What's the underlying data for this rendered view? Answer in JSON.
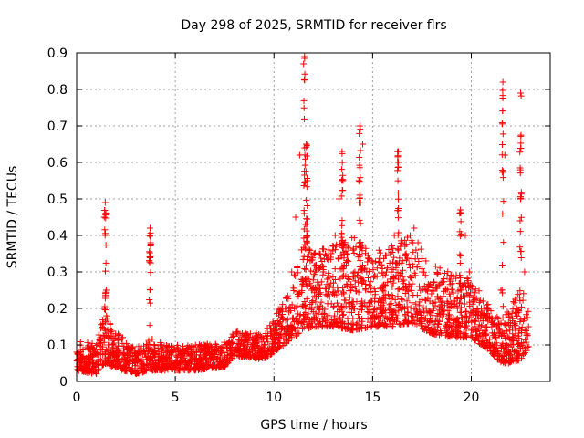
{
  "chart_data": {
    "type": "scatter",
    "title": "Day 298 of 2025, SRMTID for receiver flrs",
    "xlabel": "GPS time / hours",
    "ylabel": "SRMTID / TECUs",
    "xlim": [
      0,
      24
    ],
    "ylim": [
      0,
      0.9
    ],
    "xticks": [
      "0",
      "5",
      "10",
      "15",
      "20"
    ],
    "yticks": [
      "0",
      "0.1",
      "0.2",
      "0.3",
      "0.4",
      "0.5",
      "0.6",
      "0.7",
      "0.8",
      "0.9"
    ],
    "grid": true,
    "marker": "+",
    "color": "#ff0000",
    "series": [
      {
        "name": "SRMTID",
        "x": [
          0.0,
          0.2,
          0.4,
          0.6,
          0.8,
          1.0,
          1.2,
          1.4,
          1.5,
          1.6,
          1.8,
          2.0,
          2.3,
          2.6,
          3.0,
          3.3,
          3.6,
          3.75,
          3.9,
          4.2,
          4.5,
          5.0,
          5.5,
          6.0,
          6.5,
          7.0,
          7.5,
          8.0,
          8.5,
          9.0,
          9.5,
          10.0,
          10.3,
          10.6,
          10.9,
          11.1,
          11.3,
          11.5,
          11.7,
          11.9,
          12.1,
          12.3,
          12.5,
          12.7,
          12.9,
          13.1,
          13.3,
          13.5,
          13.7,
          13.9,
          14.1,
          14.3,
          14.5,
          14.7,
          14.9,
          15.1,
          15.3,
          15.5,
          15.7,
          15.9,
          16.1,
          16.3,
          16.5,
          16.7,
          16.9,
          17.1,
          17.3,
          17.5,
          17.7,
          17.9,
          18.1,
          18.3,
          18.5,
          18.7,
          18.9,
          19.1,
          19.3,
          19.5,
          19.7,
          19.9,
          20.1,
          20.3,
          20.5,
          20.7,
          20.9,
          21.1,
          21.3,
          21.5,
          21.7,
          21.9,
          22.1,
          22.3,
          22.5,
          22.7,
          22.9
        ],
        "y": [
          0.08,
          0.06,
          0.05,
          0.07,
          0.09,
          0.05,
          0.12,
          0.45,
          0.25,
          0.1,
          0.08,
          0.07,
          0.06,
          0.05,
          0.06,
          0.05,
          0.07,
          0.38,
          0.08,
          0.07,
          0.06,
          0.05,
          0.05,
          0.06,
          0.07,
          0.08,
          0.07,
          0.08,
          0.1,
          0.09,
          0.1,
          0.13,
          0.16,
          0.2,
          0.3,
          0.45,
          0.62,
          0.87,
          0.55,
          0.25,
          0.3,
          0.35,
          0.3,
          0.28,
          0.35,
          0.4,
          0.5,
          0.55,
          0.35,
          0.25,
          0.3,
          0.55,
          0.65,
          0.3,
          0.22,
          0.2,
          0.18,
          0.25,
          0.3,
          0.35,
          0.4,
          0.6,
          0.38,
          0.35,
          0.4,
          0.42,
          0.38,
          0.3,
          0.25,
          0.22,
          0.2,
          0.18,
          0.22,
          0.25,
          0.28,
          0.22,
          0.2,
          0.25,
          0.4,
          0.3,
          0.22,
          0.2,
          0.18,
          0.15,
          0.1,
          0.08,
          0.15,
          0.25,
          0.62,
          0.08,
          0.12,
          0.2,
          0.5,
          0.3,
          0.15
        ],
        "band_x": [
          0.0,
          1.0,
          1.4,
          1.8,
          3.0,
          3.7,
          4.5,
          6.0,
          7.5,
          8.0,
          9.5,
          10.0,
          10.5,
          11.0,
          11.5,
          12.0,
          13.0,
          14.0,
          15.0,
          16.0,
          17.0,
          18.0,
          19.0,
          20.0,
          21.0,
          21.5,
          22.0,
          22.5,
          22.9
        ],
        "band_lo": [
          0.03,
          0.02,
          0.05,
          0.04,
          0.02,
          0.03,
          0.03,
          0.03,
          0.04,
          0.07,
          0.06,
          0.08,
          0.1,
          0.12,
          0.14,
          0.15,
          0.15,
          0.14,
          0.15,
          0.15,
          0.16,
          0.13,
          0.12,
          0.12,
          0.08,
          0.05,
          0.05,
          0.06,
          0.09
        ],
        "band_hi": [
          0.12,
          0.1,
          0.2,
          0.15,
          0.09,
          0.12,
          0.1,
          0.1,
          0.11,
          0.14,
          0.13,
          0.18,
          0.22,
          0.3,
          0.38,
          0.35,
          0.38,
          0.4,
          0.35,
          0.38,
          0.4,
          0.32,
          0.3,
          0.28,
          0.2,
          0.18,
          0.2,
          0.28,
          0.2
        ],
        "spikes": [
          {
            "x": 1.45,
            "min": 0.1,
            "max": 0.49
          },
          {
            "x": 3.72,
            "min": 0.1,
            "max": 0.42
          },
          {
            "x": 11.55,
            "min": 0.3,
            "max": 0.89
          },
          {
            "x": 11.65,
            "min": 0.3,
            "max": 0.65
          },
          {
            "x": 13.45,
            "min": 0.2,
            "max": 0.63
          },
          {
            "x": 14.35,
            "min": 0.2,
            "max": 0.7
          },
          {
            "x": 16.3,
            "min": 0.2,
            "max": 0.63
          },
          {
            "x": 19.45,
            "min": 0.15,
            "max": 0.47
          },
          {
            "x": 21.6,
            "min": 0.1,
            "max": 0.82
          },
          {
            "x": 22.5,
            "min": 0.1,
            "max": 0.79
          }
        ]
      }
    ]
  }
}
